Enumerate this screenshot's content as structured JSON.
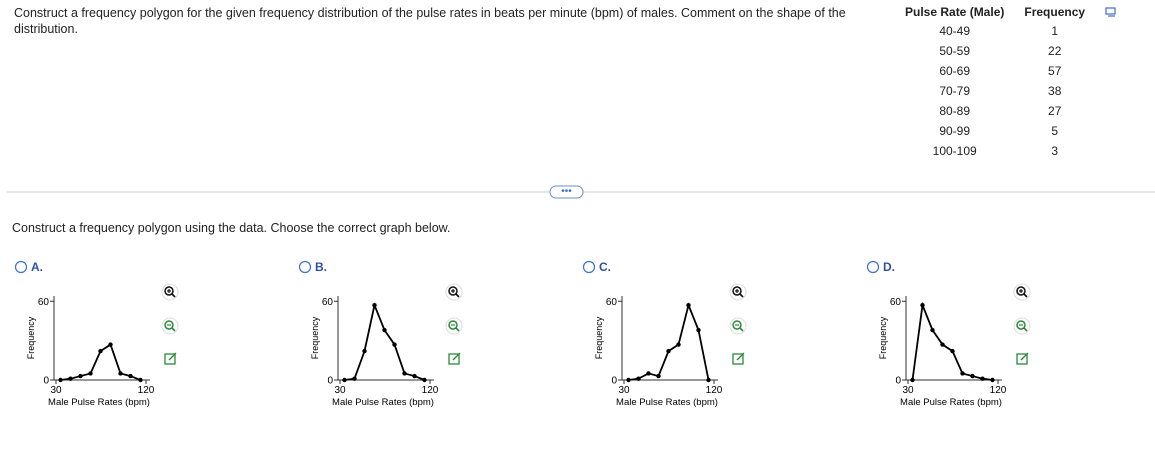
{
  "question": "Construct a frequency polygon for the given frequency distribution of the pulse rates in beats per minute (bpm) of males. Comment on the shape of the distribution.",
  "table": {
    "headers": [
      "Pulse Rate (Male)",
      "Frequency"
    ],
    "rows": [
      [
        "40-49",
        1
      ],
      [
        "50-59",
        22
      ],
      [
        "60-69",
        57
      ],
      [
        "70-79",
        38
      ],
      [
        "80-89",
        27
      ],
      [
        "90-99",
        5
      ],
      [
        "100-109",
        3
      ]
    ]
  },
  "instruction": "Construct a frequency polygon using the data. Choose the correct graph below.",
  "options": [
    {
      "letter": "A.",
      "chart": {
        "type": "line",
        "y_label": "Frequency",
        "x_label": "Male Pulse Rates (bpm)",
        "xlim": [
          28,
          124
        ],
        "ylim": [
          0,
          64
        ],
        "xticks": [
          30,
          120
        ],
        "yticks": [
          0,
          60
        ],
        "x": [
          34.5,
          44.5,
          54.5,
          64.5,
          74.5,
          84.5,
          94.5,
          104.5,
          114.5
        ],
        "values": [
          0,
          1,
          3,
          5,
          22,
          27,
          5,
          3,
          0
        ]
      }
    },
    {
      "letter": "B.",
      "chart": {
        "type": "line",
        "y_label": "Frequency",
        "x_label": "Male Pulse Rates (bpm)",
        "xlim": [
          28,
          124
        ],
        "ylim": [
          0,
          64
        ],
        "xticks": [
          30,
          120
        ],
        "yticks": [
          0,
          60
        ],
        "x": [
          34.5,
          44.5,
          54.5,
          64.5,
          74.5,
          84.5,
          94.5,
          104.5,
          114.5
        ],
        "values": [
          0,
          1,
          22,
          57,
          38,
          27,
          5,
          3,
          0
        ]
      }
    },
    {
      "letter": "C.",
      "chart": {
        "type": "line",
        "y_label": "Frequency",
        "x_label": "Male Pulse Rates (bpm)",
        "xlim": [
          28,
          124
        ],
        "ylim": [
          0,
          64
        ],
        "xticks": [
          30,
          120
        ],
        "yticks": [
          0,
          60
        ],
        "x": [
          34.5,
          44.5,
          54.5,
          64.5,
          74.5,
          84.5,
          94.5,
          104.5,
          114.5
        ],
        "values": [
          0,
          1,
          5,
          3,
          22,
          27,
          57,
          38,
          0
        ]
      }
    },
    {
      "letter": "D.",
      "chart": {
        "type": "line",
        "y_label": "Frequency",
        "x_label": "Male Pulse Rates (bpm)",
        "xlim": [
          28,
          124
        ],
        "ylim": [
          0,
          64
        ],
        "xticks": [
          30,
          120
        ],
        "yticks": [
          0,
          60
        ],
        "x": [
          34.5,
          44.5,
          54.5,
          64.5,
          74.5,
          84.5,
          94.5,
          104.5,
          114.5
        ],
        "values": [
          0,
          57,
          38,
          27,
          22,
          5,
          3,
          1,
          0
        ]
      }
    }
  ]
}
